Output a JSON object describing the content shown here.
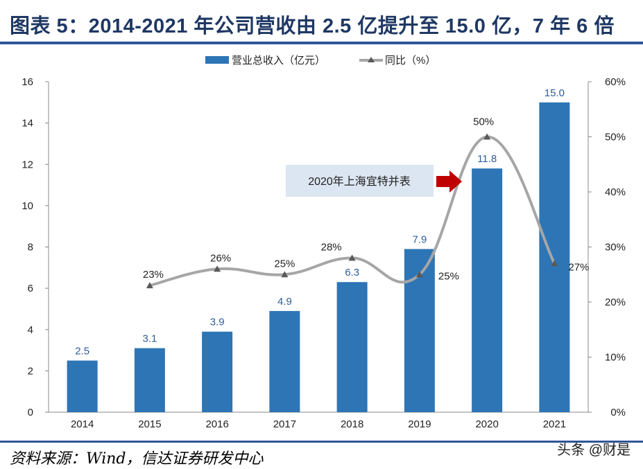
{
  "title": "图表 5：2014-2021 年公司营收由 2.5 亿提升至 15.0 亿，7 年 6 倍",
  "source": "资料来源：Wind，信达证券研发中心",
  "watermark": "头条 @财是",
  "chart_data": {
    "type": "bar+line",
    "categories": [
      "2014",
      "2015",
      "2016",
      "2017",
      "2018",
      "2019",
      "2020",
      "2021"
    ],
    "series": [
      {
        "name": "营业总收入（亿元）",
        "type": "bar",
        "axis": "left",
        "color": "#2e75b6",
        "values": [
          2.5,
          3.1,
          3.9,
          4.9,
          6.3,
          7.9,
          11.8,
          15.0
        ],
        "labels": [
          "2.5",
          "3.1",
          "3.9",
          "4.9",
          "6.3",
          "7.9",
          "11.8",
          "15.0"
        ]
      },
      {
        "name": "同比（%）",
        "type": "line",
        "axis": "right",
        "color": "#a6a6a6",
        "marker": "triangle",
        "values": [
          null,
          23,
          26,
          25,
          28,
          25,
          50,
          27
        ],
        "labels": [
          "",
          "23%",
          "26%",
          "25%",
          "28%",
          "25%",
          "50%",
          "27%"
        ]
      }
    ],
    "y_left": {
      "min": 0,
      "max": 16,
      "ticks": [
        "0",
        "2",
        "4",
        "6",
        "8",
        "10",
        "12",
        "14",
        "16"
      ]
    },
    "y_right": {
      "min": 0,
      "max": 60,
      "ticks": [
        "0%",
        "10%",
        "20%",
        "30%",
        "40%",
        "50%",
        "60%"
      ]
    },
    "legend": "top",
    "grid": false,
    "annotation": {
      "text": "2020年上海宜特并表",
      "box_color": "#dce6f2",
      "arrow_color": "#c00000"
    }
  }
}
